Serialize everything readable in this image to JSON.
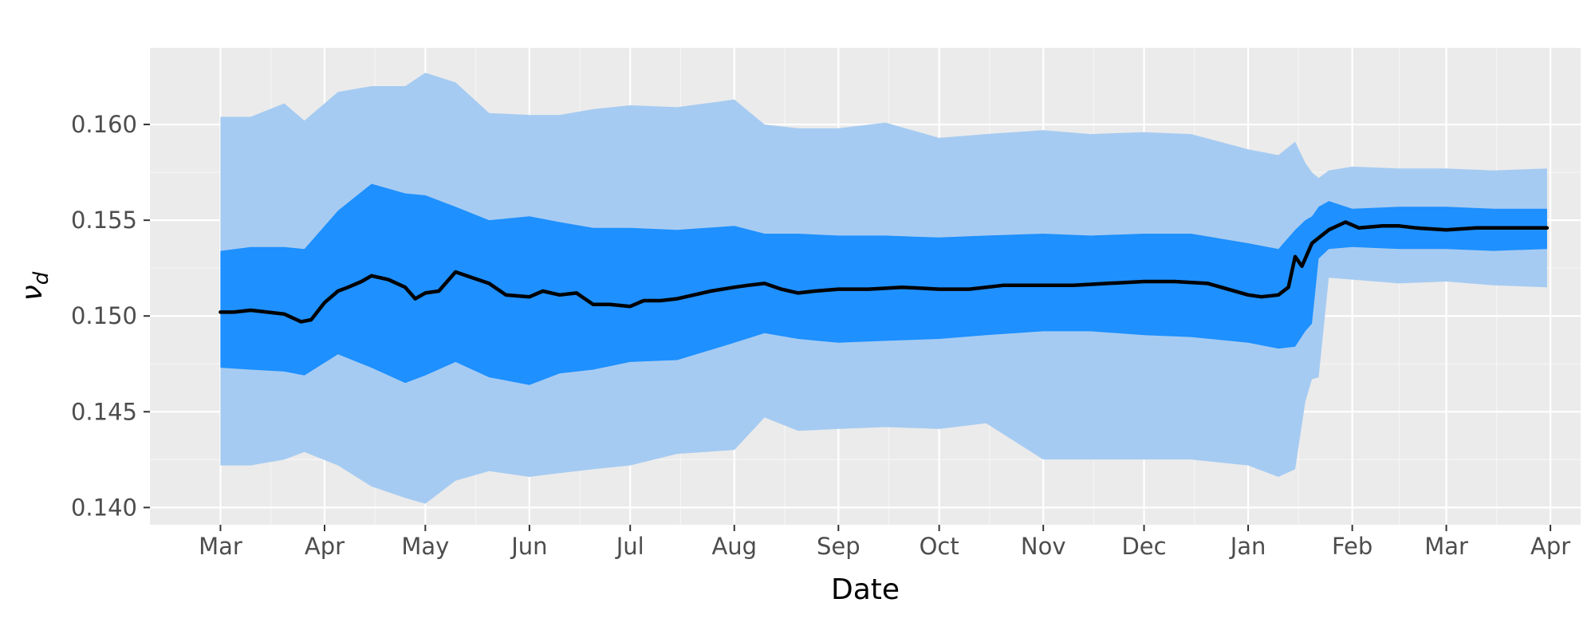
{
  "chart_data": {
    "type": "area",
    "title": "",
    "xlabel": "Date",
    "ylabel": "ν",
    "ylabel_subscript": "d",
    "x_tick_labels": [
      "Mar",
      "Apr",
      "May",
      "Jun",
      "Jul",
      "Aug",
      "Sep",
      "Oct",
      "Nov",
      "Dec",
      "Jan",
      "Feb",
      "Mar",
      "Apr"
    ],
    "x_tick_dates": [
      "2020-03-01",
      "2020-04-01",
      "2020-05-01",
      "2020-06-01",
      "2020-07-01",
      "2020-08-01",
      "2020-09-01",
      "2020-10-01",
      "2020-11-01",
      "2020-12-01",
      "2021-01-01",
      "2021-02-01",
      "2021-03-01",
      "2021-04-01"
    ],
    "y_ticks": [
      0.14,
      0.145,
      0.15,
      0.155,
      0.16
    ],
    "y_tick_labels": [
      "0.140",
      "0.145",
      "0.150",
      "0.155",
      "0.160"
    ],
    "xlim": [
      "2020-02-09",
      "2021-04-10"
    ],
    "ylim": [
      0.1391,
      0.164
    ],
    "grid": true,
    "legend": "none",
    "colors": {
      "panel_background": "#ebebeb",
      "grid_major": "#ffffff",
      "grid_minor": "#f5f5f5",
      "outer_band": "#a6cbf2",
      "inner_band": "#1e90ff",
      "median_line": "#000000",
      "tick_text": "#4d4d4d"
    },
    "series": [
      {
        "kind": "band",
        "color": "#a6cbf2",
        "x": [
          "2020-03-01",
          "2020-03-10",
          "2020-03-20",
          "2020-03-26",
          "2020-04-05",
          "2020-04-15",
          "2020-04-25",
          "2020-05-01",
          "2020-05-10",
          "2020-05-20",
          "2020-06-01",
          "2020-06-10",
          "2020-06-20",
          "2020-07-01",
          "2020-07-15",
          "2020-08-01",
          "2020-08-10",
          "2020-08-20",
          "2020-09-01",
          "2020-09-15",
          "2020-10-01",
          "2020-10-15",
          "2020-11-01",
          "2020-11-15",
          "2020-12-01",
          "2020-12-15",
          "2021-01-01",
          "2021-01-10",
          "2021-01-15",
          "2021-01-18",
          "2021-01-20",
          "2021-01-22",
          "2021-01-25",
          "2021-02-01",
          "2021-02-15",
          "2021-03-01",
          "2021-03-15",
          "2021-03-31"
        ],
        "upper": [
          0.1604,
          0.1604,
          0.1611,
          0.1602,
          0.1617,
          0.162,
          0.162,
          0.1627,
          0.1622,
          0.1606,
          0.1605,
          0.1605,
          0.1608,
          0.161,
          0.1609,
          0.1613,
          0.16,
          0.1598,
          0.1598,
          0.1601,
          0.1593,
          0.1595,
          0.1597,
          0.1595,
          0.1596,
          0.1595,
          0.1587,
          0.1584,
          0.1591,
          0.158,
          0.1575,
          0.1572,
          0.1576,
          0.1578,
          0.1577,
          0.1577,
          0.1576,
          0.1577
        ],
        "lower": [
          0.1422,
          0.1422,
          0.1425,
          0.1429,
          0.1422,
          0.1411,
          0.1405,
          0.1402,
          0.1414,
          0.1419,
          0.1416,
          0.1418,
          0.142,
          0.1422,
          0.1428,
          0.143,
          0.1447,
          0.144,
          0.1441,
          0.1442,
          0.1441,
          0.1444,
          0.1425,
          0.1425,
          0.1425,
          0.1425,
          0.1422,
          0.1416,
          0.142,
          0.1455,
          0.1467,
          0.1468,
          0.152,
          0.1519,
          0.1517,
          0.1518,
          0.1516,
          0.1515
        ]
      },
      {
        "kind": "band",
        "color": "#1e90ff",
        "x": [
          "2020-03-01",
          "2020-03-10",
          "2020-03-20",
          "2020-03-26",
          "2020-04-05",
          "2020-04-15",
          "2020-04-25",
          "2020-05-01",
          "2020-05-10",
          "2020-05-20",
          "2020-06-01",
          "2020-06-10",
          "2020-06-20",
          "2020-07-01",
          "2020-07-15",
          "2020-08-01",
          "2020-08-10",
          "2020-08-20",
          "2020-09-01",
          "2020-09-15",
          "2020-10-01",
          "2020-10-15",
          "2020-11-01",
          "2020-11-15",
          "2020-12-01",
          "2020-12-15",
          "2021-01-01",
          "2021-01-10",
          "2021-01-15",
          "2021-01-18",
          "2021-01-20",
          "2021-01-22",
          "2021-01-25",
          "2021-02-01",
          "2021-02-15",
          "2021-03-01",
          "2021-03-15",
          "2021-03-31"
        ],
        "upper": [
          0.1534,
          0.1536,
          0.1536,
          0.1535,
          0.1555,
          0.1569,
          0.1564,
          0.1563,
          0.1557,
          0.155,
          0.1552,
          0.1549,
          0.1546,
          0.1546,
          0.1545,
          0.1547,
          0.1543,
          0.1543,
          0.1542,
          0.1542,
          0.1541,
          0.1542,
          0.1543,
          0.1542,
          0.1543,
          0.1543,
          0.1538,
          0.1535,
          0.1545,
          0.155,
          0.1552,
          0.1557,
          0.156,
          0.1556,
          0.1557,
          0.1557,
          0.1556,
          0.1556
        ],
        "lower": [
          0.1473,
          0.1472,
          0.1471,
          0.1469,
          0.148,
          0.1473,
          0.1465,
          0.1469,
          0.1476,
          0.1468,
          0.1464,
          0.147,
          0.1472,
          0.1476,
          0.1477,
          0.1486,
          0.1491,
          0.1488,
          0.1486,
          0.1487,
          0.1488,
          0.149,
          0.1492,
          0.1492,
          0.149,
          0.1489,
          0.1486,
          0.1483,
          0.1484,
          0.1492,
          0.1496,
          0.153,
          0.1535,
          0.1536,
          0.1535,
          0.1535,
          0.1534,
          0.1535
        ]
      },
      {
        "kind": "line",
        "color": "#000000",
        "x": [
          "2020-03-01",
          "2020-03-05",
          "2020-03-10",
          "2020-03-15",
          "2020-03-20",
          "2020-03-25",
          "2020-03-28",
          "2020-04-01",
          "2020-04-05",
          "2020-04-08",
          "2020-04-12",
          "2020-04-15",
          "2020-04-20",
          "2020-04-25",
          "2020-04-28",
          "2020-05-01",
          "2020-05-05",
          "2020-05-10",
          "2020-05-15",
          "2020-05-20",
          "2020-05-25",
          "2020-06-01",
          "2020-06-05",
          "2020-06-10",
          "2020-06-15",
          "2020-06-20",
          "2020-06-25",
          "2020-07-01",
          "2020-07-05",
          "2020-07-10",
          "2020-07-15",
          "2020-07-20",
          "2020-07-25",
          "2020-08-01",
          "2020-08-05",
          "2020-08-10",
          "2020-08-15",
          "2020-08-20",
          "2020-08-25",
          "2020-09-01",
          "2020-09-10",
          "2020-09-20",
          "2020-10-01",
          "2020-10-10",
          "2020-10-20",
          "2020-11-01",
          "2020-11-10",
          "2020-11-20",
          "2020-12-01",
          "2020-12-10",
          "2020-12-20",
          "2021-01-01",
          "2021-01-05",
          "2021-01-10",
          "2021-01-13",
          "2021-01-15",
          "2021-01-17",
          "2021-01-20",
          "2021-01-25",
          "2021-01-30",
          "2021-02-03",
          "2021-02-10",
          "2021-02-15",
          "2021-02-20",
          "2021-03-01",
          "2021-03-10",
          "2021-03-20",
          "2021-03-31"
        ],
        "y": [
          0.1502,
          0.1502,
          0.1503,
          0.1502,
          0.1501,
          0.1497,
          0.1498,
          0.1507,
          0.1513,
          0.1515,
          0.1518,
          0.1521,
          0.1519,
          0.1515,
          0.1509,
          0.1512,
          0.1513,
          0.1523,
          0.152,
          0.1517,
          0.1511,
          0.151,
          0.1513,
          0.1511,
          0.1512,
          0.1506,
          0.1506,
          0.1505,
          0.1508,
          0.1508,
          0.1509,
          0.1511,
          0.1513,
          0.1515,
          0.1516,
          0.1517,
          0.1514,
          0.1512,
          0.1513,
          0.1514,
          0.1514,
          0.1515,
          0.1514,
          0.1514,
          0.1516,
          0.1516,
          0.1516,
          0.1517,
          0.1518,
          0.1518,
          0.1517,
          0.1511,
          0.151,
          0.1511,
          0.1515,
          0.1531,
          0.1526,
          0.1538,
          0.1545,
          0.1549,
          0.1546,
          0.1547,
          0.1547,
          0.1546,
          0.1545,
          0.1546,
          0.1546,
          0.1546
        ]
      }
    ]
  }
}
